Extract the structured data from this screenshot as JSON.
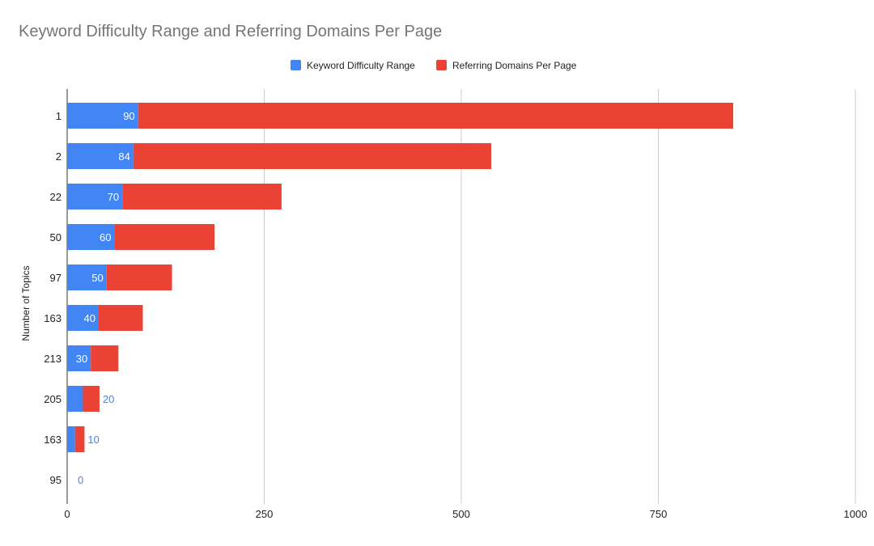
{
  "chart_data": {
    "type": "bar",
    "orientation": "horizontal",
    "stacked": true,
    "title": "Keyword Difficulty Range and Referring Domains Per Page",
    "xlabel": "",
    "ylabel": "Number of Topics",
    "categories": [
      "1",
      "2",
      "22",
      "50",
      "97",
      "163",
      "213",
      "205",
      "163",
      "95"
    ],
    "series": [
      {
        "name": "Keyword Difficulty Range",
        "color": "#4285F4",
        "values": [
          90,
          84,
          70,
          60,
          50,
          40,
          30,
          20,
          10,
          0
        ]
      },
      {
        "name": "Referring Domains Per Page",
        "color": "#EA4335",
        "values": [
          755,
          454,
          202,
          127,
          83,
          56,
          35,
          21,
          12,
          0
        ]
      }
    ],
    "data_labels": [
      "90",
      "84",
      "70",
      "60",
      "50",
      "40",
      "30",
      "20",
      "10",
      "0"
    ],
    "xlim": [
      0,
      1000
    ],
    "xticks": [
      "0",
      "250",
      "500",
      "750",
      "1000"
    ],
    "grid": "vertical",
    "legend_position": "top"
  }
}
